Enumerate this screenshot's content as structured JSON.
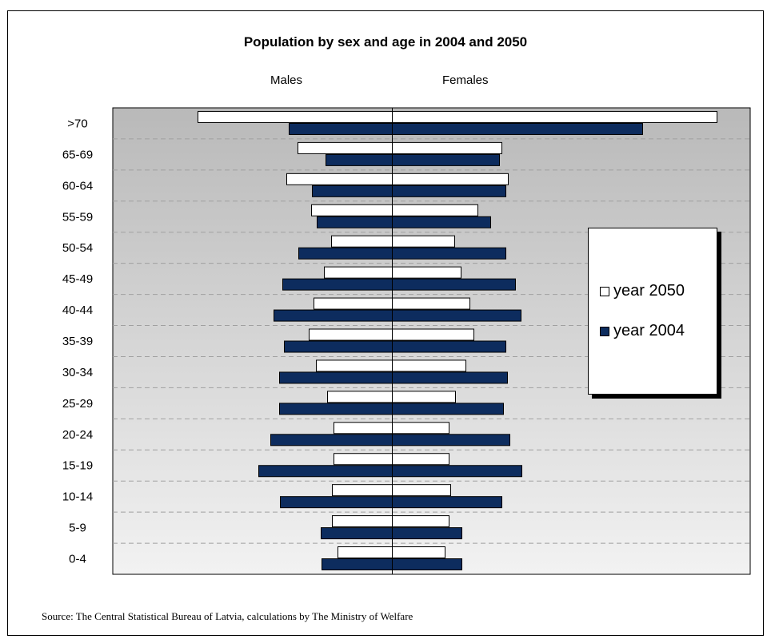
{
  "chart_data": {
    "type": "bar",
    "orientation": "horizontal",
    "title": "Population by sex and age in 2004 and 2050",
    "side_labels": {
      "left": "Males",
      "right": "Females"
    },
    "categories": [
      ">70",
      "65-69",
      "60-64",
      "55-59",
      "50-54",
      "45-49",
      "40-44",
      "35-39",
      "30-34",
      "25-29",
      "20-24",
      "15-19",
      "10-14",
      "5-9",
      "0-4"
    ],
    "series": [
      {
        "name": "year 2050",
        "color": "#ffffff",
        "males": [
          243,
          118,
          132,
          101,
          76,
          85,
          98,
          104,
          95,
          81,
          73,
          73,
          75,
          75,
          68
        ],
        "females": [
          406,
          137,
          145,
          107,
          78,
          86,
          97,
          102,
          92,
          79,
          71,
          71,
          73,
          71,
          66
        ]
      },
      {
        "name": "year 2004",
        "color": "#0d2c5e",
        "males": [
          129,
          83,
          100,
          94,
          117,
          137,
          148,
          135,
          141,
          141,
          152,
          167,
          140,
          89,
          88
        ],
        "females": [
          313,
          134,
          142,
          123,
          142,
          154,
          161,
          142,
          144,
          139,
          147,
          162,
          137,
          87,
          87
        ]
      }
    ],
    "axis_max": 450,
    "grid": "dashed horizontal",
    "legend": {
      "placement": "right"
    }
  },
  "source": "Source: The Central Statistical Bureau of Latvia, calculations by The Ministry of Welfare"
}
